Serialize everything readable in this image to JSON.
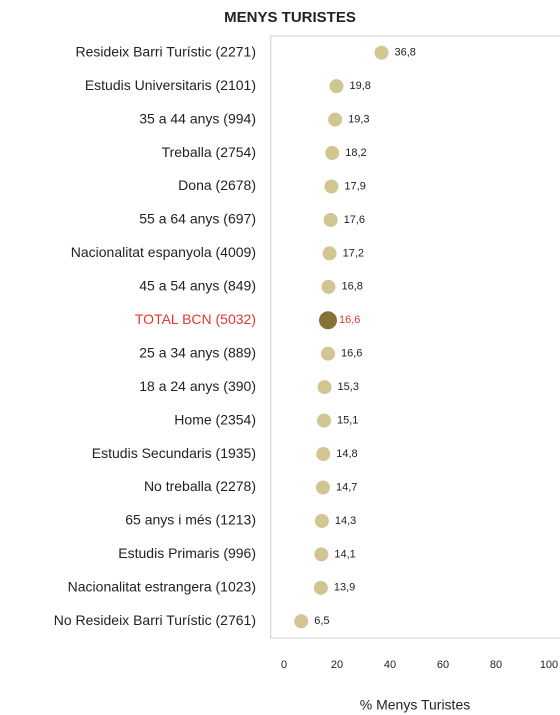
{
  "chart_data": {
    "type": "dot",
    "title": "MENYS TURISTES",
    "x_label": "% Menys Turistes",
    "categories": [
      "Resideix Barri Turístic (2271)",
      "Estudis Universitaris (2101)",
      "35 a 44 anys (994)",
      "Treballa (2754)",
      "Dona (2678)",
      "55 a 64 anys (697)",
      "Nacionalitat espanyola (4009)",
      "45 a 54 anys (849)",
      "TOTAL BCN (5032)",
      "25 a 34 anys (889)",
      "18 a 24 anys (390)",
      "Home (2354)",
      "Estudis Secundaris (1935)",
      "No treballa (2278)",
      "65 anys i més (1213)",
      "Estudis Primaris (996)",
      "Nacionalitat estrangera (1023)",
      "No Resideix Barri Turístic (2761)"
    ],
    "values": [
      36.8,
      19.8,
      19.3,
      18.2,
      17.9,
      17.6,
      17.2,
      16.8,
      16.6,
      16.6,
      15.3,
      15.1,
      14.8,
      14.7,
      14.3,
      14.1,
      13.9,
      6.5
    ],
    "value_labels": [
      "36,8",
      "19,8",
      "19,3",
      "18,2",
      "17,9",
      "17,6",
      "17,2",
      "16,8",
      "16,6",
      "16,6",
      "15,3",
      "15,1",
      "14,8",
      "14,7",
      "14,3",
      "14,1",
      "13,9",
      "6,5"
    ],
    "color": "#d1c592",
    "highlight": {
      "index": 8,
      "color": "#857334",
      "label_color": "#e0392d"
    },
    "xlim": [
      -5,
      105
    ],
    "xticks": [
      0,
      20,
      40,
      60,
      80,
      100
    ],
    "grid": false
  }
}
